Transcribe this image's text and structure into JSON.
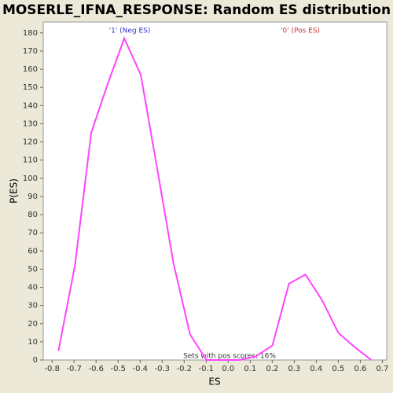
{
  "chart_data": {
    "type": "line",
    "title": "MOSERLE_IFNA_RESPONSE: Random ES distribution",
    "x_label": "ES",
    "y_label": "P(ES)",
    "annotations": [
      {
        "text": "'1' (Neg ES)",
        "color": "#3333cc"
      },
      {
        "text": "'0' (Pos ES)",
        "color": "#cc3333"
      },
      {
        "text": "Sets with pos scores: 16%",
        "color": "#333333"
      }
    ],
    "series": [
      {
        "name": "P(ES)",
        "color": "#ff44ff",
        "x": [
          -0.771,
          -0.696,
          -0.622,
          -0.547,
          -0.472,
          -0.397,
          -0.322,
          -0.248,
          -0.173,
          -0.098,
          -0.023,
          0.052,
          0.126,
          0.201,
          0.276,
          0.351,
          0.426,
          0.5,
          0.575,
          0.65
        ],
        "values": [
          5,
          52,
          125,
          152,
          177,
          157,
          105,
          53,
          14,
          0,
          0,
          0,
          2,
          8,
          42,
          47,
          33,
          15,
          7,
          0
        ]
      }
    ],
    "xlim": [
      -0.84,
      0.72
    ],
    "xticks": [
      -0.8,
      -0.7,
      -0.6,
      -0.5,
      -0.4,
      -0.3,
      -0.2,
      -0.1,
      {
        "value": 0,
        "label": "0.0"
      },
      0.1,
      0.2,
      0.3,
      0.4,
      0.5,
      0.6,
      0.7
    ],
    "ylim": [
      0,
      186
    ],
    "yticks": [
      0,
      10,
      20,
      30,
      40,
      50,
      60,
      70,
      80,
      90,
      100,
      110,
      120,
      130,
      140,
      150,
      160,
      170,
      180
    ],
    "grid": false
  }
}
